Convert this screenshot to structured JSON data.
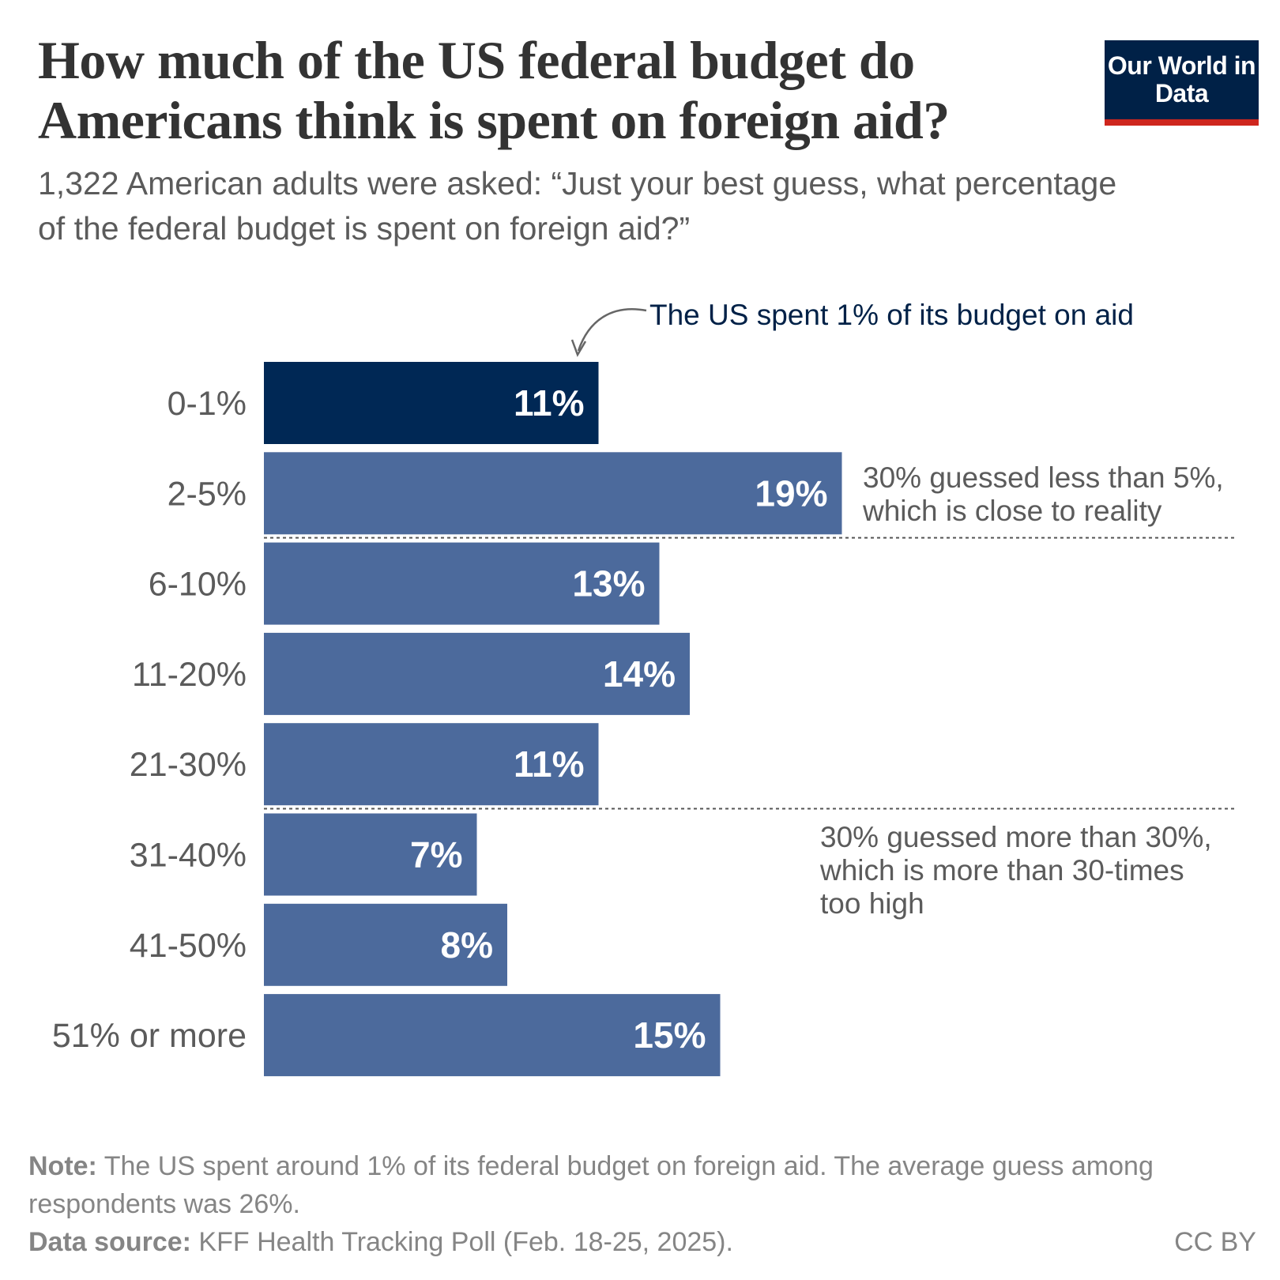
{
  "header": {
    "title": "How much of the US federal budget do Americans think is spent on foreign aid?",
    "subtitle": "1,322 American adults were asked: “Just your best guess, what percentage of the federal budget is spent on foreign aid?”",
    "logo": "Our World in Data"
  },
  "chart_data": {
    "type": "bar",
    "orientation": "horizontal",
    "categories": [
      "0-1%",
      "2-5%",
      "6-10%",
      "11-20%",
      "21-30%",
      "31-40%",
      "41-50%",
      "51% or more"
    ],
    "values": [
      11,
      19,
      13,
      14,
      11,
      7,
      8,
      15
    ],
    "value_labels": [
      "11%",
      "19%",
      "13%",
      "14%",
      "11%",
      "7%",
      "8%",
      "15%"
    ],
    "highlight_index": 0,
    "colors": {
      "highlight": "#002855",
      "default": "#4c6a9c"
    },
    "annotations": [
      "The US spent 1% of its budget on aid",
      [
        "30% guessed less than 5%,",
        "which is close to reality"
      ],
      [
        "30% guessed more than 30%,",
        "which is more than 30-times",
        "too high"
      ]
    ],
    "dividers_after": [
      "2-5%",
      "21-30%"
    ]
  },
  "footer": {
    "note_label": "Note:",
    "note_text": " The US spent around 1% of its federal budget on foreign aid. The average guess among respondents was 26%.",
    "source_label": "Data source:",
    "source_text": " KFF Health Tracking Poll (Feb. 18-25, 2025).",
    "license": "CC BY"
  }
}
